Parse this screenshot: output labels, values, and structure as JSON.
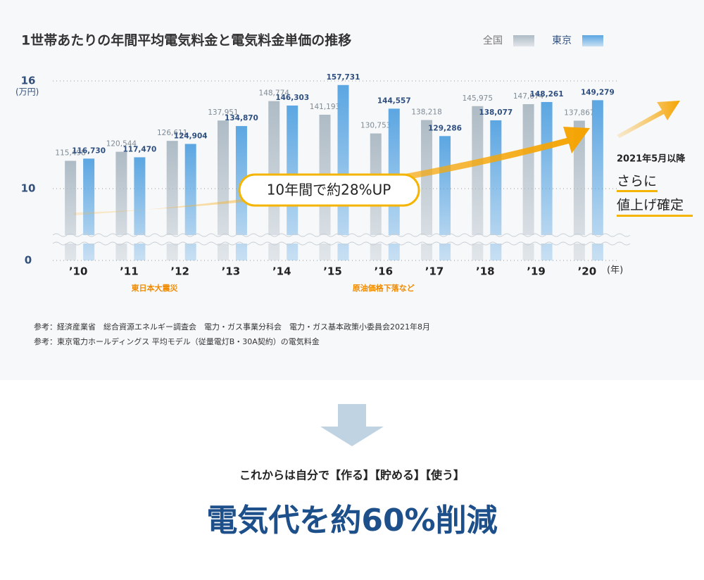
{
  "chart_data": {
    "type": "bar",
    "title": "1世帯あたりの年間平均電気料金と電気料金単価の推移",
    "y_axis_unit": "(万円)",
    "x_axis_unit": "(年)",
    "categories": [
      "’10",
      "’11",
      "’12",
      "’13",
      "’14",
      "’15",
      "’16",
      "’17",
      "’18",
      "’19",
      "’20"
    ],
    "series": [
      {
        "name": "全国",
        "color": "#aebbc5",
        "values": [
          11.5498,
          12.0544,
          12.6611,
          13.7951,
          14.8774,
          14.1193,
          13.0753,
          13.8218,
          14.5975,
          14.7074,
          13.7867
        ],
        "value_labels": [
          "115,498",
          "120,544",
          "126,611",
          "137,951",
          "148,774",
          "141,193",
          "130,753",
          "138,218",
          "145,975",
          "147,074",
          "137,867"
        ]
      },
      {
        "name": "東京",
        "color": "#5ba6e2",
        "values": [
          11.673,
          11.747,
          12.4904,
          13.487,
          14.6303,
          15.7731,
          14.4557,
          12.9286,
          13.8077,
          14.8261,
          14.9279
        ],
        "value_labels": [
          "116,730",
          "117,470",
          "124,904",
          "134,870",
          "146,303",
          "157,731",
          "144,557",
          "129,286",
          "138,077",
          "148,261",
          "149,279"
        ]
      }
    ],
    "ylim": [
      0,
      16
    ],
    "yticks": [
      0,
      10,
      16
    ],
    "grid": true,
    "axis_break": true,
    "annotations": [
      "東日本大震災",
      "原油価格下落など"
    ],
    "callout": "10年間で約28%UP",
    "side_note": {
      "date": "2021年5月以降",
      "lines": [
        "さらに",
        "値上げ確定"
      ]
    },
    "sources": [
      "参考：経済産業省　総合資源エネルギー調査会　電力・ガス事業分科会　電力・ガス基本政策小委員会2021年8月",
      "参考：東京電力ホールディングス 平均モデル（従量電灯B・30A契約）の電気料金"
    ]
  },
  "bottom": {
    "lead": "これからは自分で【作る】【貯める】【使う】",
    "headline": "電気代を約60%削減"
  }
}
